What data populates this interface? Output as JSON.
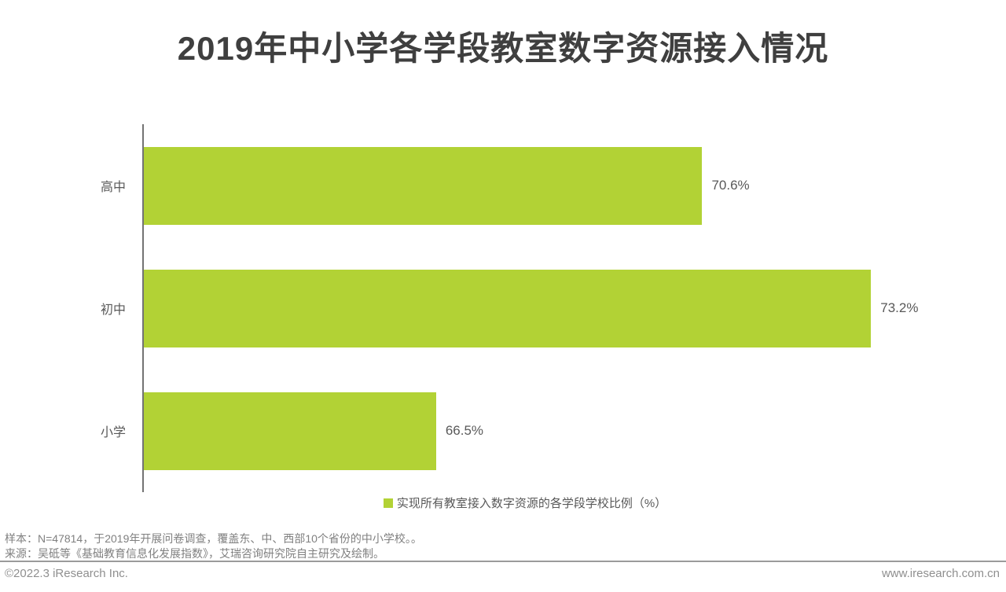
{
  "title": "2019年中小学各学段教室数字资源接入情况",
  "chart_data": {
    "type": "bar",
    "orientation": "horizontal",
    "title": "2019年中小学各学段教室数字资源接入情况",
    "categories": [
      "高中",
      "初中",
      "小学"
    ],
    "values": [
      70.6,
      73.2,
      66.5
    ],
    "value_labels": [
      "70.6%",
      "73.2%",
      "66.5%"
    ],
    "series_name": "实现所有教室接入数字资源的各学段学校比例（%）",
    "unit": "%",
    "xlim": [
      62,
      75
    ],
    "grid": false,
    "legend_position": "bottom",
    "bar_color": "#b2d235"
  },
  "legend": {
    "swatch_color": "#b2d235",
    "label": "实现所有教室接入数字资源的各学段学校比例（%）"
  },
  "notes": {
    "sample": "样本：N=47814，于2019年开展问卷调查，覆盖东、中、西部10个省份的中小学校。。",
    "source": "来源：吴砥等《基础教育信息化发展指数》，艾瑞咨询研究院自主研究及绘制。"
  },
  "footer": {
    "copyright": "©2022.3 iResearch Inc.",
    "website": "www.iresearch.com.cn"
  }
}
